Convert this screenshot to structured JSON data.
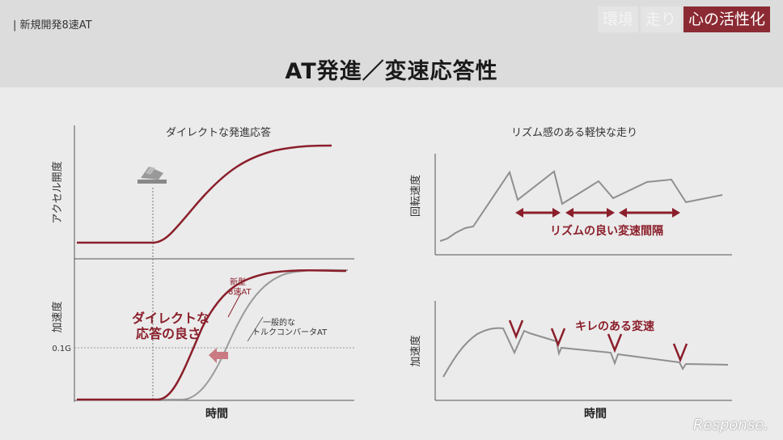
{
  "header": {
    "section_label": "| 新規開発8速AT",
    "tags": [
      "環境",
      "走り",
      "心の活性化"
    ],
    "active_tag": "心の活性化",
    "title": "AT発進／変速応答性"
  },
  "left_panel": {
    "title": "ダイレクトな発進応答",
    "top_ylabel": "アクセル開度",
    "bottom_ylabel": "加速度",
    "tick_label": "0.1G",
    "xlabel": "時間",
    "new_label_1": "新型",
    "new_label_2": "8速AT",
    "conv_label_1": "一般的な",
    "conv_label_2": "トルクコンバータAT",
    "callout_1": "ダイレクトな",
    "callout_2": "応答の良さ",
    "pedal_icon": "accelerator-pedal-icon"
  },
  "right_panel": {
    "title": "リズム感のある軽快な走り",
    "top_ylabel": "回転速度",
    "bottom_ylabel": "加速度",
    "rhythm_label": "リズムの良い変速間隔",
    "shift_label": "キレのある変速",
    "xlabel": "時間"
  },
  "logo": "Response."
}
